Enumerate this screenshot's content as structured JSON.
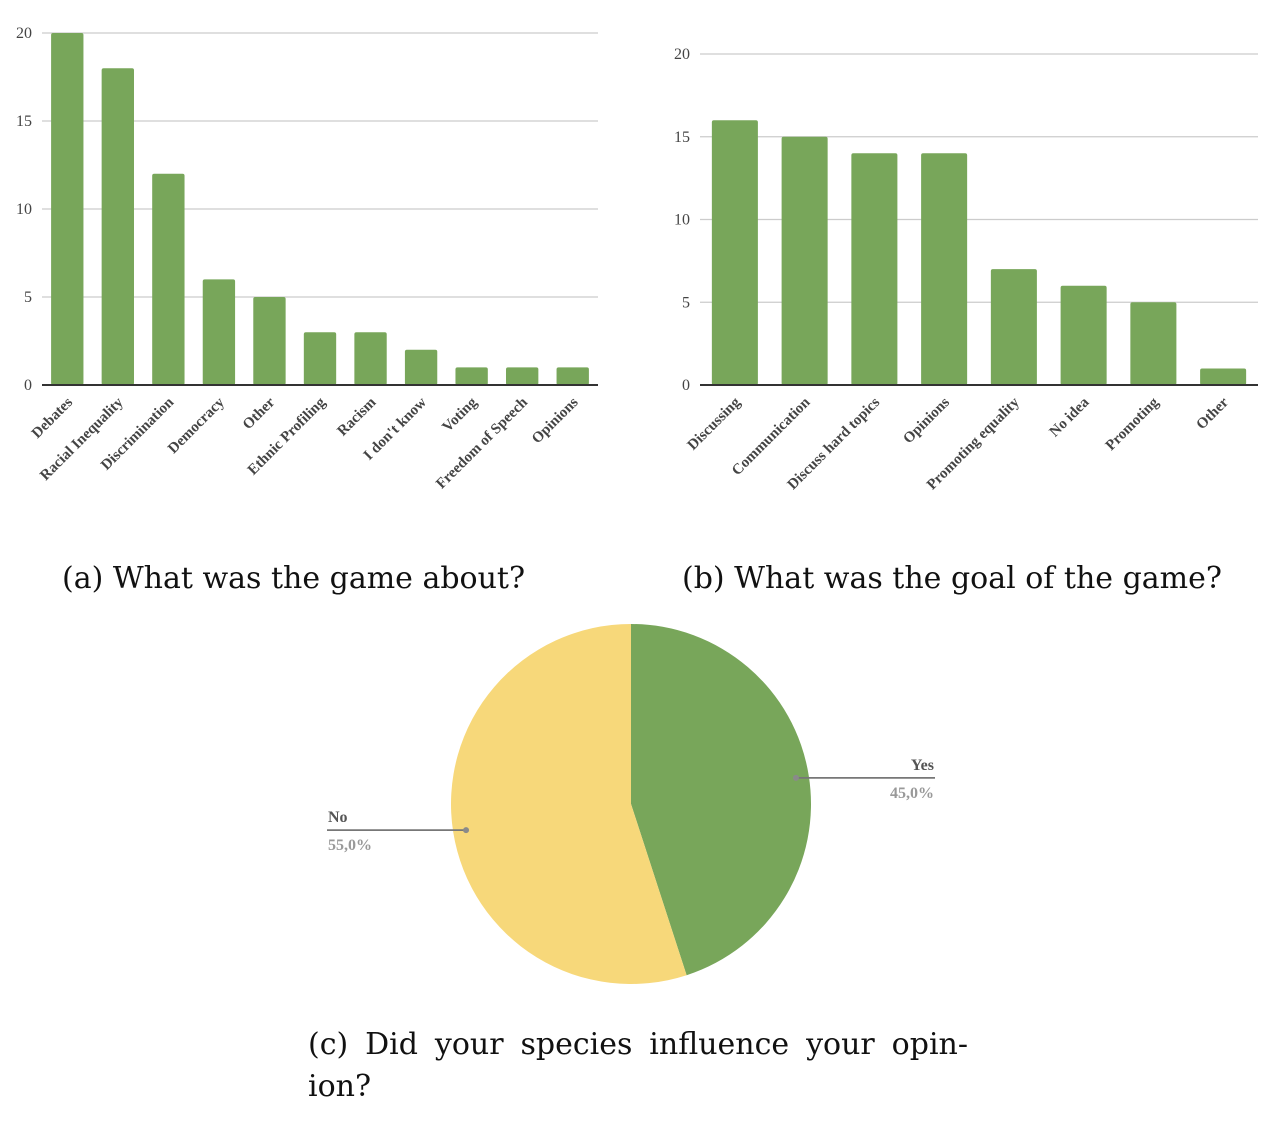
{
  "colors": {
    "bar": "#78a65a",
    "grid": "#cccccc",
    "axis": "#333333",
    "tick": "#444444",
    "pie_yes": "#78a65a",
    "pie_no": "#f7d87a",
    "leader": "#777777"
  },
  "captions": {
    "a": "(a) What was the game about?",
    "b": "(b) What was the goal of the game?",
    "c": "(c) Did your species influence your opin-ion?"
  },
  "chart_data": [
    {
      "id": "a",
      "type": "bar",
      "categories": [
        "Debates",
        "Racial Inequality",
        "Discrimination",
        "Democracy",
        "Other",
        "Ethnic Profiling",
        "Racism",
        "I don't know",
        "Voting",
        "Freedom of Speech",
        "Opinions"
      ],
      "values": [
        20,
        18,
        12,
        6,
        5,
        3,
        3,
        2,
        1,
        1,
        1
      ],
      "yticks": [
        0,
        5,
        10,
        15,
        20
      ],
      "ylim": [
        0,
        20
      ],
      "grid": true,
      "title": "",
      "xlabel": "",
      "ylabel": ""
    },
    {
      "id": "b",
      "type": "bar",
      "categories": [
        "Discussing",
        "Communication",
        "Discuss hard topics",
        "Opinions",
        "Promoting equality",
        "No idea",
        "Promoting",
        "Other"
      ],
      "values": [
        16,
        15,
        14,
        14,
        7,
        6,
        5,
        1
      ],
      "yticks": [
        0,
        5,
        10,
        15,
        20
      ],
      "ylim": [
        0,
        20
      ],
      "grid": true,
      "title": "",
      "xlabel": "",
      "ylabel": ""
    },
    {
      "id": "c",
      "type": "pie",
      "slices": [
        {
          "label": "Yes",
          "value": 45.0,
          "display": "45,0%",
          "color": "#78a65a"
        },
        {
          "label": "No",
          "value": 55.0,
          "display": "55,0%",
          "color": "#f7d87a"
        }
      ],
      "title": ""
    }
  ]
}
